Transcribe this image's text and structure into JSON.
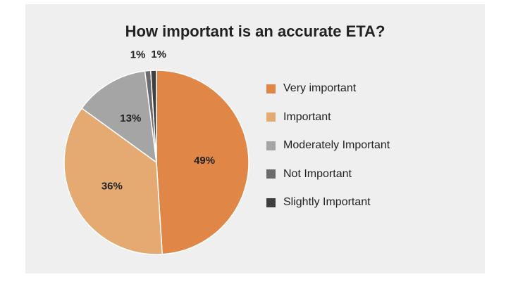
{
  "chart_data": {
    "type": "pie",
    "title": "How important is an accurate ETA?",
    "categories": [
      "Very important",
      "Important",
      "Moderately Important",
      "Not Important",
      "Slightly Important"
    ],
    "values": [
      49,
      36,
      13,
      1,
      1
    ],
    "labels": [
      "49%",
      "36%",
      "13%",
      "1%",
      "1%"
    ],
    "colors": [
      "#e08646",
      "#e4aa72",
      "#a5a5a5",
      "#6b6b6b",
      "#3f3f3f"
    ],
    "legend_position": "right"
  }
}
